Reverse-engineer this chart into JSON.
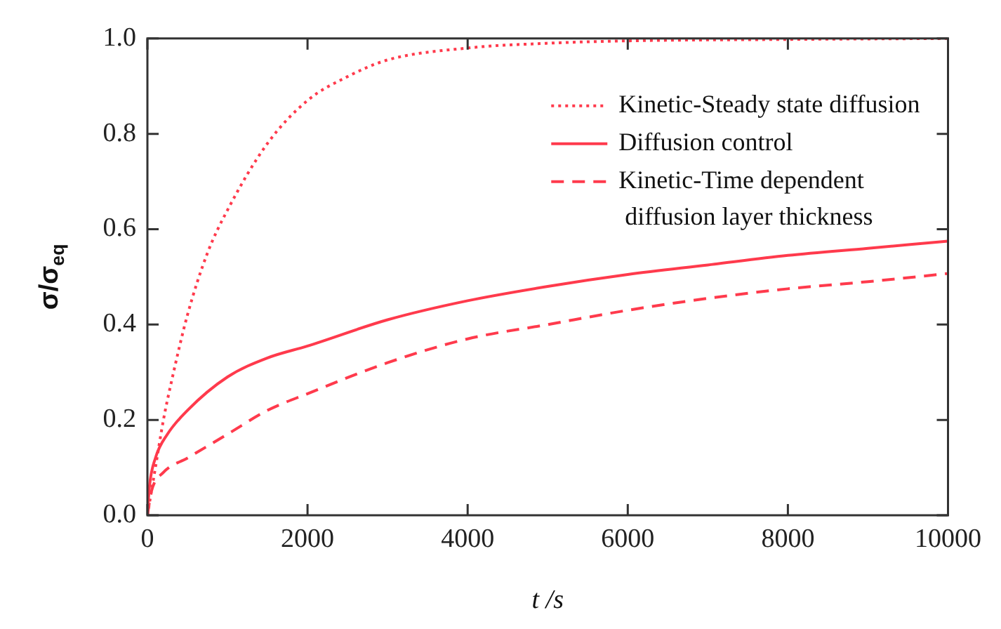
{
  "chart_data": {
    "type": "line",
    "xlabel": "t /s",
    "ylabel": "σ/σ$_{eq}$",
    "xlim": [
      0,
      10000
    ],
    "xticks": [
      0,
      2000,
      4000,
      6000,
      8000,
      10000
    ],
    "ylim": [
      0,
      1
    ],
    "yticks": [
      {
        "value": 0,
        "label": "0.0"
      },
      0.2,
      0.4,
      0.6,
      0.8,
      {
        "value": 1,
        "label": "1.0"
      }
    ],
    "grid": false,
    "legend": "top right",
    "marker": "none",
    "series": [
      {
        "name": "Kinetic-Steady state diffusion",
        "color": "#ff3a4c",
        "line_style": "dotted",
        "x": [
          0,
          100,
          200,
          300,
          500,
          750,
          1000,
          1500,
          2000,
          2500,
          3000,
          4000,
          5000,
          6000,
          8000,
          10000
        ],
        "values": [
          0,
          0.1,
          0.2,
          0.28,
          0.42,
          0.55,
          0.64,
          0.78,
          0.87,
          0.92,
          0.955,
          0.98,
          0.99,
          0.995,
          0.998,
          1.0
        ]
      },
      {
        "name": "Diffusion control",
        "color": "#ff3a4c",
        "line_style": "solid",
        "x": [
          0,
          25,
          100,
          250,
          500,
          1000,
          1500,
          2000,
          3000,
          4000,
          5000,
          6000,
          7000,
          8000,
          9000,
          10000
        ],
        "values": [
          0,
          0.06,
          0.12,
          0.17,
          0.22,
          0.29,
          0.33,
          0.355,
          0.41,
          0.45,
          0.48,
          0.505,
          0.525,
          0.545,
          0.56,
          0.575
        ]
      },
      {
        "name": "Kinetic-Time dependent diffusion layer thickness",
        "color": "#ff3a4c",
        "line_style": "dashed",
        "x": [
          0,
          50,
          200,
          500,
          1000,
          1500,
          2000,
          3000,
          4000,
          5000,
          6000,
          7000,
          8000,
          9000,
          10000
        ],
        "values": [
          0,
          0.05,
          0.09,
          0.12,
          0.17,
          0.22,
          0.255,
          0.32,
          0.37,
          0.4,
          0.43,
          0.455,
          0.475,
          0.49,
          0.507
        ]
      }
    ]
  }
}
